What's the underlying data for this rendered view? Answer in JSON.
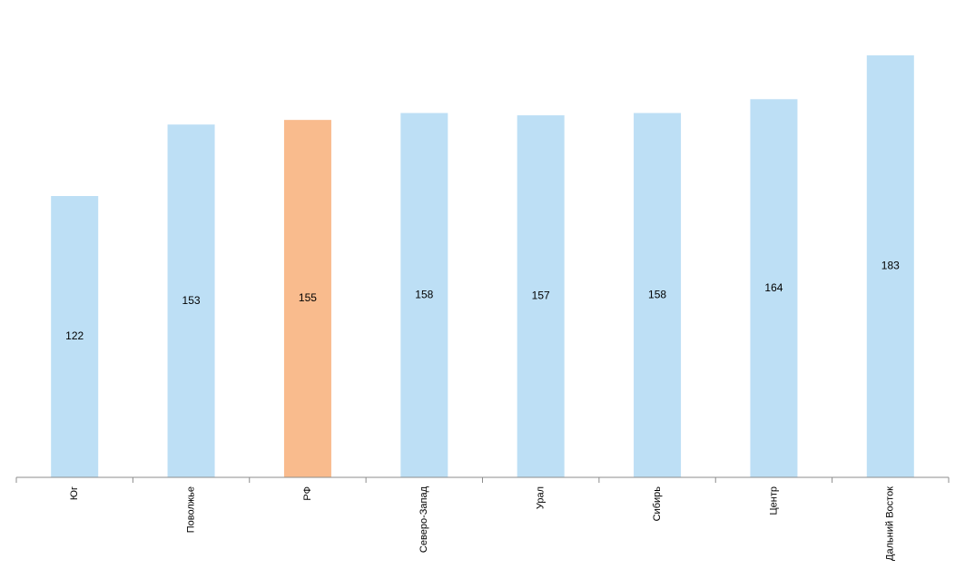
{
  "chart_data": {
    "type": "bar",
    "categories": [
      "Юг",
      "Поволжье",
      "РФ",
      "Северо-Запад",
      "Урал",
      "Сибирь",
      "Центр",
      "Дальний Восток"
    ],
    "values": [
      122,
      153,
      155,
      158,
      157,
      158,
      164,
      183
    ],
    "colors": [
      "#bddff5",
      "#bddff5",
      "#f9bb8d",
      "#bddff5",
      "#bddff5",
      "#bddff5",
      "#bddff5",
      "#bddff5"
    ],
    "ylim": [
      0,
      183
    ]
  }
}
